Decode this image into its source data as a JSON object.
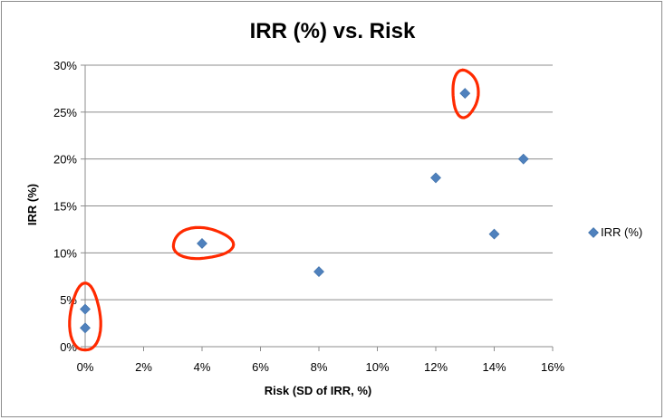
{
  "chart_data": {
    "type": "scatter",
    "title": "IRR (%) vs. Risk",
    "xlabel": "Risk (SD of IRR, %)",
    "ylabel": "IRR (%)",
    "xlim": [
      0,
      16
    ],
    "ylim": [
      0,
      30
    ],
    "x_ticks": [
      "0%",
      "2%",
      "4%",
      "6%",
      "8%",
      "10%",
      "12%",
      "14%",
      "16%"
    ],
    "y_ticks": [
      "0%",
      "5%",
      "10%",
      "15%",
      "20%",
      "25%",
      "30%"
    ],
    "grid": "horizontal",
    "legend_position": "right",
    "series": [
      {
        "name": "IRR (%)",
        "color": "#4f81bd",
        "marker": "diamond",
        "points": [
          {
            "x": 0,
            "y": 2
          },
          {
            "x": 0,
            "y": 4
          },
          {
            "x": 4,
            "y": 11
          },
          {
            "x": 8,
            "y": 8
          },
          {
            "x": 12,
            "y": 18
          },
          {
            "x": 13,
            "y": 27
          },
          {
            "x": 14,
            "y": 12
          },
          {
            "x": 15,
            "y": 20
          }
        ]
      }
    ],
    "annotations": {
      "type": "hand-drawn circles",
      "color": "#ff2a00",
      "circled_points": [
        {
          "x": 0,
          "y": 3
        },
        {
          "x": 4,
          "y": 11
        },
        {
          "x": 13,
          "y": 27
        }
      ]
    }
  }
}
